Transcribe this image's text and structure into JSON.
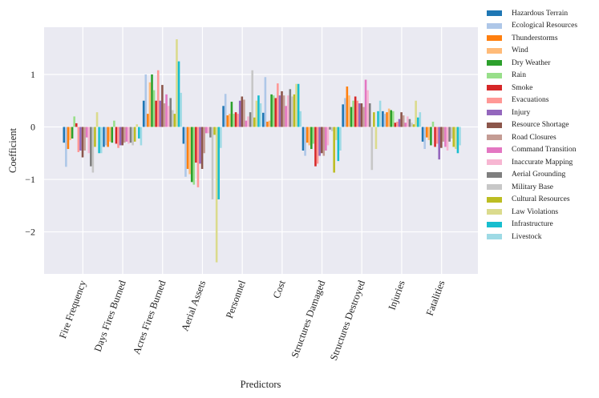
{
  "chart_data": {
    "type": "bar",
    "title": "",
    "xlabel": "Predictors",
    "ylabel": "Coefficient",
    "ylim": [
      -2.8,
      1.9
    ],
    "yticks": [
      -2,
      -1,
      0,
      1
    ],
    "ytick_labels": [
      "−2",
      "−1",
      "0",
      "1"
    ],
    "grid": true,
    "legend_position": "outside-right",
    "categories": [
      "Fire Frequency",
      "Days Fires Burned",
      "Acres Fires Burned",
      "Aerial Assets",
      "Personnel",
      "Cost",
      "Structures Damaged",
      "Structures Destroyed",
      "Injuries",
      "Fatalities"
    ],
    "series": [
      {
        "name": "Hazardous Terrain",
        "color": "#1f77b4",
        "values": [
          -0.3,
          -0.38,
          0.5,
          -0.32,
          0.4,
          0.27,
          -0.45,
          0.43,
          0.3,
          -0.28
        ]
      },
      {
        "name": "Ecological Resources",
        "color": "#aec7e8",
        "values": [
          -0.76,
          -0.35,
          1.0,
          -0.95,
          0.63,
          0.95,
          -0.55,
          0.55,
          0.25,
          -0.42
        ]
      },
      {
        "name": "Thunderstorms",
        "color": "#ff7f0e",
        "values": [
          -0.42,
          -0.38,
          0.25,
          -0.8,
          0.22,
          0.1,
          -0.3,
          0.77,
          0.28,
          -0.2
        ]
      },
      {
        "name": "Wind",
        "color": "#ffbb78",
        "values": [
          -0.25,
          -0.28,
          0.85,
          -0.9,
          0.25,
          0.12,
          -0.35,
          0.6,
          0.35,
          -0.25
        ]
      },
      {
        "name": "Dry Weather",
        "color": "#2ca02c",
        "values": [
          -0.22,
          -0.3,
          1.0,
          -1.05,
          0.48,
          0.62,
          -0.42,
          0.38,
          0.32,
          -0.35
        ]
      },
      {
        "name": "Rain",
        "color": "#98df8a",
        "values": [
          0.2,
          0.12,
          0.7,
          -1.1,
          0.25,
          0.6,
          -0.32,
          0.5,
          0.3,
          0.1
        ]
      },
      {
        "name": "Smoke",
        "color": "#d62728",
        "values": [
          0.07,
          -0.32,
          0.5,
          -0.68,
          0.28,
          0.55,
          -0.75,
          0.58,
          0.08,
          -0.38
        ]
      },
      {
        "name": "Evacuations",
        "color": "#ff9896",
        "values": [
          -0.48,
          -0.4,
          1.08,
          -1.15,
          0.25,
          0.83,
          -0.7,
          0.5,
          0.1,
          -0.32
        ]
      },
      {
        "name": "Injury",
        "color": "#9467bd",
        "values": [
          -0.45,
          -0.35,
          0.5,
          -0.7,
          0.5,
          0.6,
          -0.55,
          0.45,
          0.15,
          -0.62
        ]
      },
      {
        "name": "Resource Shortage",
        "color": "#8c564b",
        "values": [
          -0.58,
          -0.35,
          0.8,
          -0.8,
          0.58,
          0.68,
          -0.5,
          0.45,
          0.28,
          -0.4
        ]
      },
      {
        "name": "Road Closures",
        "color": "#c49c94",
        "values": [
          -0.45,
          -0.3,
          0.45,
          -0.5,
          0.52,
          0.6,
          -0.55,
          0.38,
          0.22,
          -0.28
        ]
      },
      {
        "name": "Command Transition",
        "color": "#e377c2",
        "values": [
          -0.2,
          -0.28,
          0.62,
          -0.12,
          0.12,
          0.4,
          -0.45,
          0.9,
          0.08,
          -0.38
        ]
      },
      {
        "name": "Inaccurate Mapping",
        "color": "#f7b6d2",
        "values": [
          -0.5,
          -0.32,
          0.4,
          -0.12,
          0.2,
          0.6,
          -0.35,
          0.7,
          0.2,
          -0.45
        ]
      },
      {
        "name": "Aerial Grounding",
        "color": "#7f7f7f",
        "values": [
          -0.75,
          -0.3,
          0.55,
          -0.2,
          0.28,
          0.72,
          -0.05,
          0.45,
          0.15,
          -0.28
        ]
      },
      {
        "name": "Military Base",
        "color": "#c7c7c7",
        "values": [
          -0.87,
          -0.35,
          0.32,
          -1.38,
          1.08,
          0.58,
          -0.08,
          -0.82,
          0.08,
          -0.22
        ]
      },
      {
        "name": "Cultural Resources",
        "color": "#bcbd22",
        "values": [
          -0.38,
          -0.28,
          0.25,
          -0.15,
          0.18,
          0.62,
          -0.87,
          0.28,
          0.05,
          -0.38
        ]
      },
      {
        "name": "Law Violations",
        "color": "#dbdb8d",
        "values": [
          0.28,
          0.05,
          1.67,
          -2.58,
          0.5,
          0.82,
          -0.25,
          -0.42,
          0.5,
          -0.42
        ]
      },
      {
        "name": "Infrastructure",
        "color": "#17becf",
        "values": [
          -0.5,
          -0.22,
          1.25,
          -1.38,
          0.6,
          0.82,
          -0.65,
          0.3,
          0.18,
          -0.5
        ]
      },
      {
        "name": "Livestock",
        "color": "#9edae5",
        "values": [
          -0.5,
          -0.35,
          0.65,
          -0.4,
          0.45,
          0.3,
          -0.45,
          0.5,
          0.28,
          -0.35
        ]
      }
    ]
  }
}
